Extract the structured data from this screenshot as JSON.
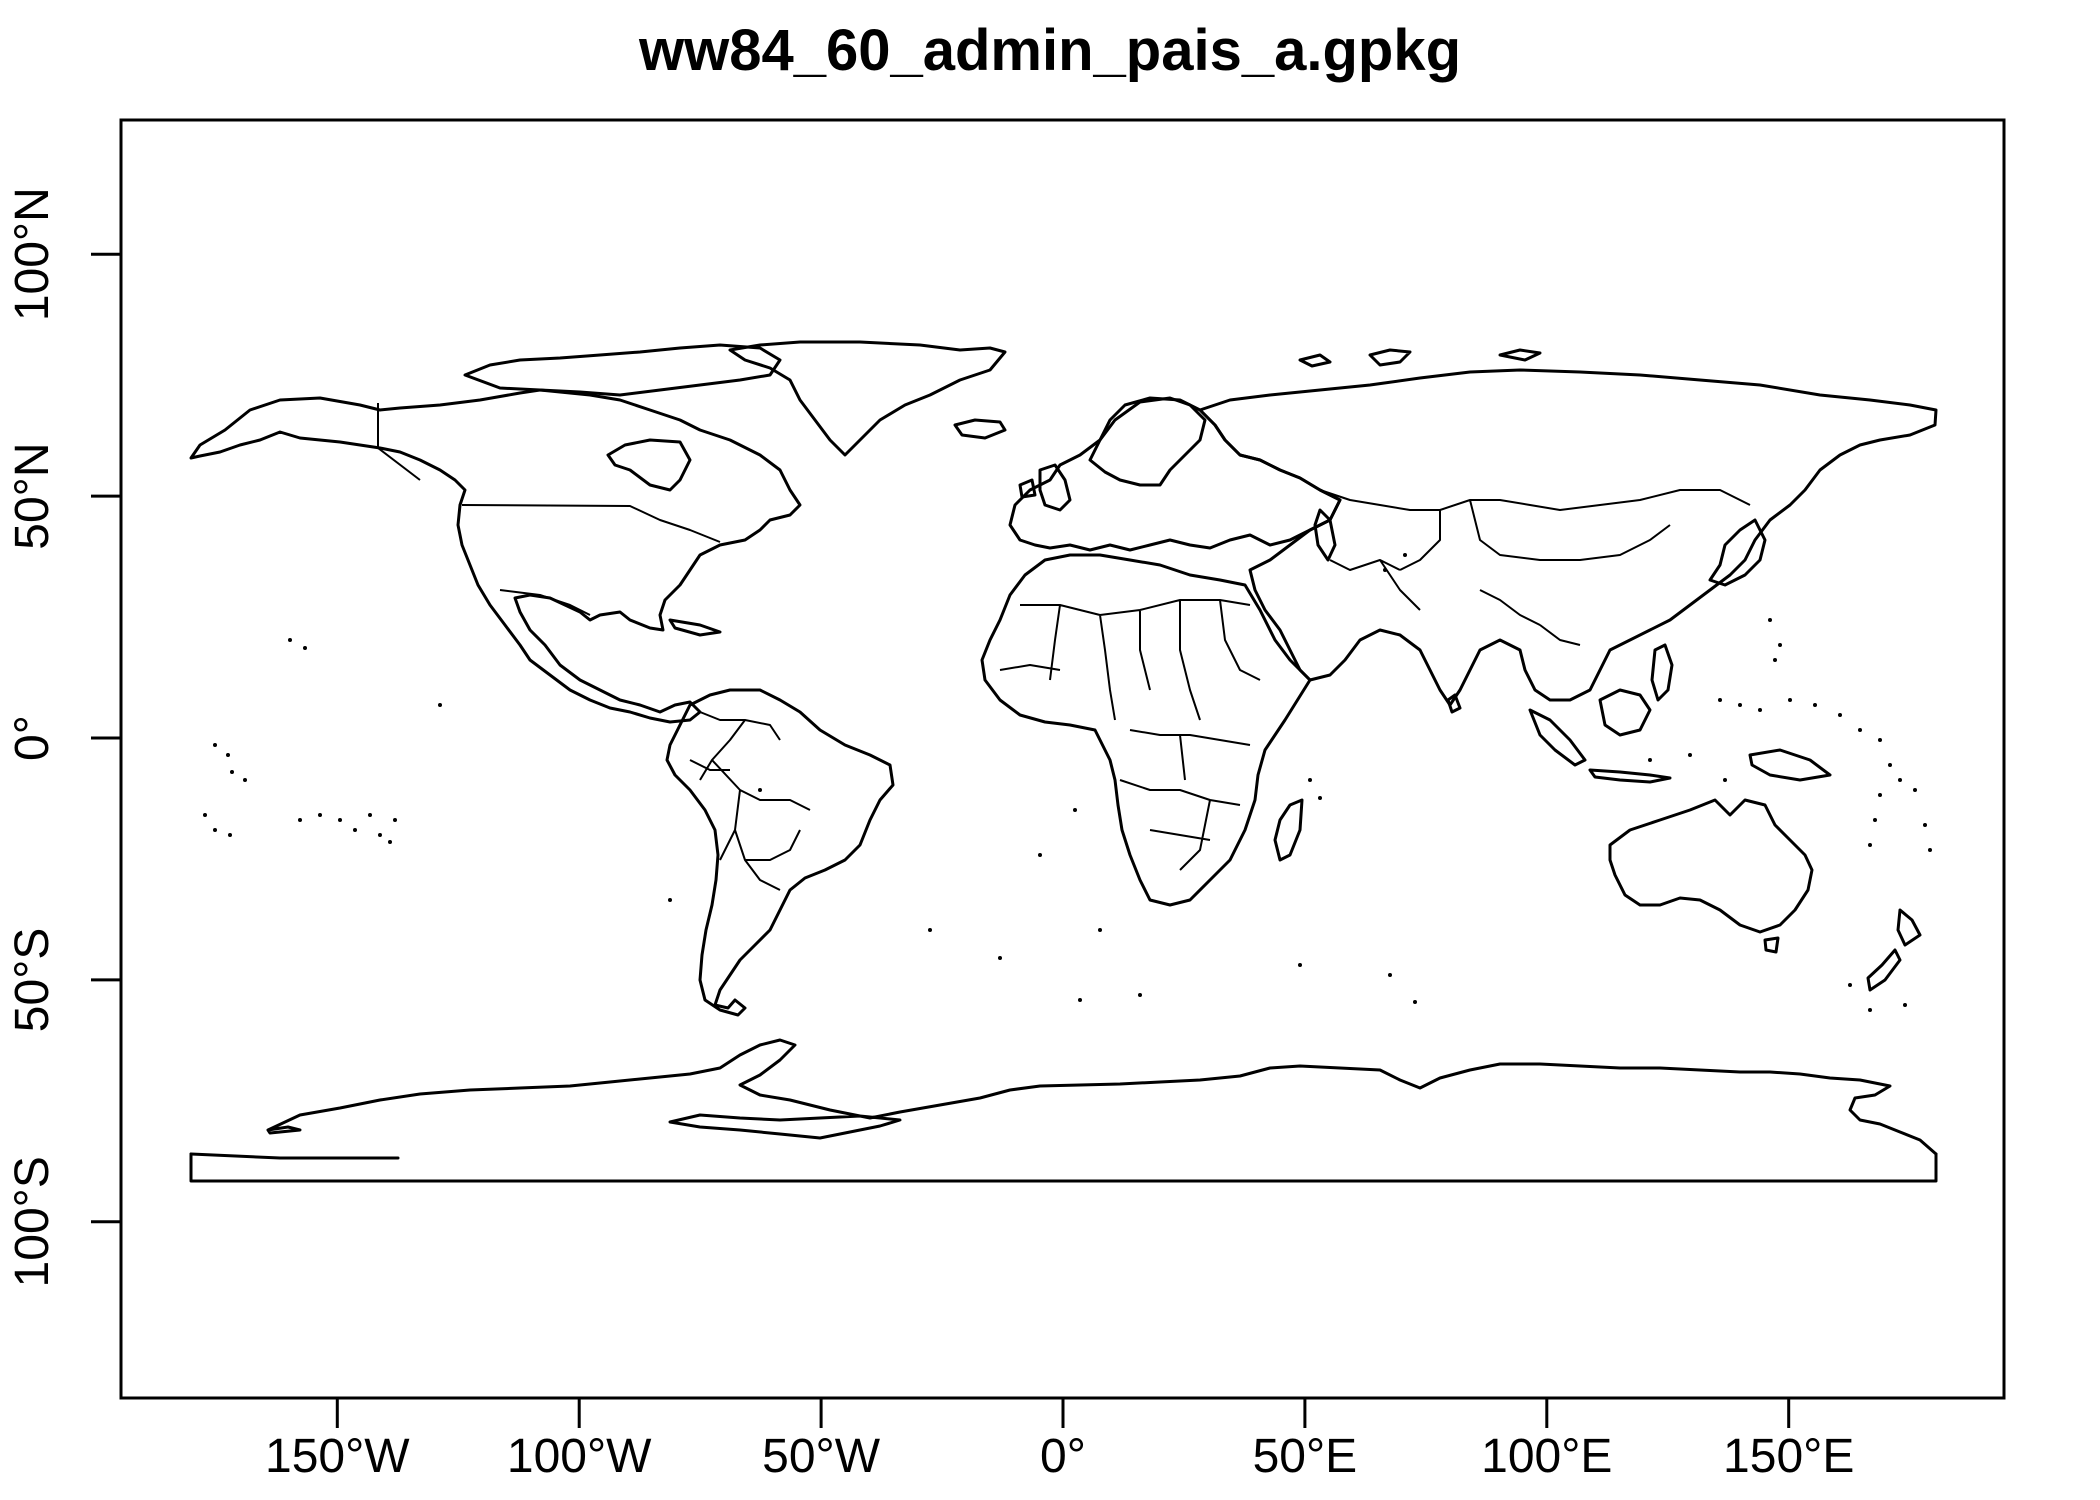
{
  "title": "ww84_60_admin_pais_a.gpkg",
  "map": {
    "projection": "longitude-latitude (WGS84)",
    "frame": true,
    "x_axis": {
      "ticks": [
        {
          "value": -150,
          "label": "150°W"
        },
        {
          "value": -100,
          "label": "100°W"
        },
        {
          "value": -50,
          "label": "50°W"
        },
        {
          "value": 0,
          "label": "0°"
        },
        {
          "value": 50,
          "label": "50°E"
        },
        {
          "value": 100,
          "label": "100°E"
        },
        {
          "value": 150,
          "label": "150°E"
        }
      ]
    },
    "y_axis": {
      "ticks": [
        {
          "value": 100,
          "label": "100°N"
        },
        {
          "value": 50,
          "label": "50°N"
        },
        {
          "value": 0,
          "label": "0°"
        },
        {
          "value": -50,
          "label": "50°S"
        },
        {
          "value": -100,
          "label": "100°S"
        }
      ]
    },
    "line_color": "#000000",
    "background": "#ffffff"
  }
}
